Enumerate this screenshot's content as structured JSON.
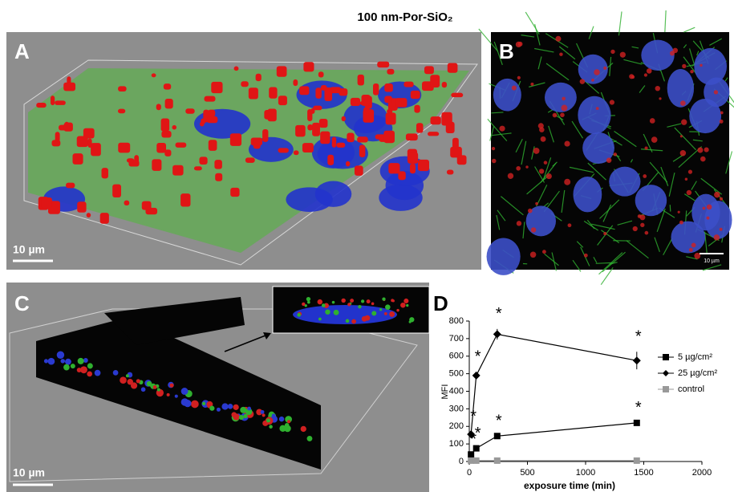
{
  "header": {
    "title": "100 nm-Por-SiO₂"
  },
  "panels": {
    "a": {
      "label": "A",
      "scale_bar": "10 µm"
    },
    "b": {
      "label": "B",
      "scale_bar": "10 µm"
    },
    "c": {
      "label": "C",
      "scale_bar": "10 µm"
    }
  },
  "chart_data": {
    "type": "line",
    "label": "D",
    "x": [
      15,
      60,
      240,
      1440
    ],
    "xlabel": "exposure time (min)",
    "ylabel": "MFI",
    "xlim": [
      0,
      2000
    ],
    "xticks": [
      0,
      500,
      1000,
      1500,
      2000
    ],
    "ylim": [
      0,
      800
    ],
    "yticks": [
      0,
      100,
      200,
      300,
      400,
      500,
      600,
      700,
      800
    ],
    "legend": "right",
    "series": [
      {
        "name": "5 µg/cm²",
        "color": "#000000",
        "marker": "square",
        "values": [
          40,
          75,
          145,
          220
        ],
        "significance": [
          "*",
          "*",
          "*",
          "*"
        ]
      },
      {
        "name": "25 µg/cm²",
        "color": "#000000",
        "marker": "diamond",
        "values": [
          155,
          490,
          725,
          575
        ],
        "errors": [
          15,
          20,
          30,
          50
        ],
        "significance": [
          "*",
          "*",
          "*",
          "*"
        ]
      },
      {
        "name": "control",
        "color": "#999999",
        "marker": "square",
        "values": [
          5,
          5,
          5,
          5
        ]
      }
    ]
  }
}
